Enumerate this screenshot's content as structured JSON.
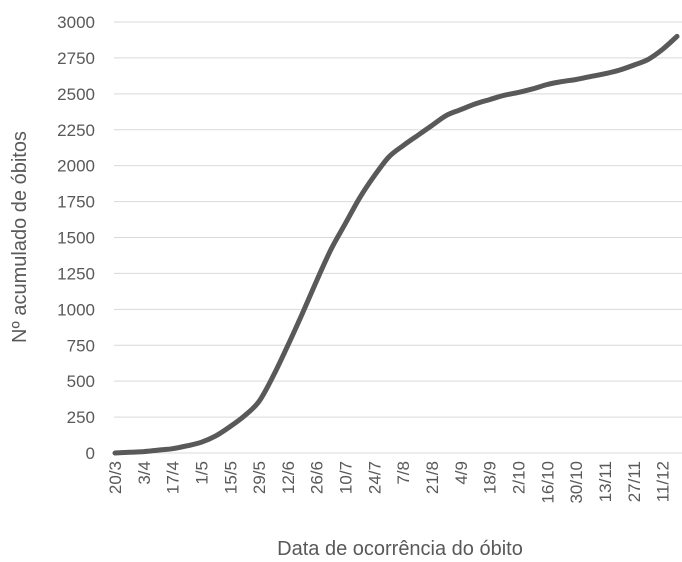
{
  "chart_data": {
    "type": "line",
    "title": "",
    "xlabel": "Data de ocorrência do óbito",
    "ylabel": "Nº acumulado de óbitos",
    "ylim": [
      0,
      3000
    ],
    "yticks": [
      0,
      250,
      500,
      750,
      1000,
      1250,
      1500,
      1750,
      2000,
      2250,
      2500,
      2750,
      3000
    ],
    "xtick_labels": [
      "20/3",
      "3/4",
      "17/4",
      "1/5",
      "15/5",
      "29/5",
      "12/6",
      "26/6",
      "10/7",
      "24/7",
      "7/8",
      "21/8",
      "4/9",
      "18/9",
      "2/10",
      "16/10",
      "30/10",
      "13/11",
      "27/11",
      "11/12"
    ],
    "grid": true,
    "legend": "none",
    "line_color": "#595959",
    "series": [
      {
        "x": [
          "20/3",
          "27/3",
          "3/4",
          "10/4",
          "17/4",
          "24/4",
          "1/5",
          "8/5",
          "15/5",
          "22/5",
          "29/5",
          "5/6",
          "12/6",
          "19/6",
          "26/6",
          "3/7",
          "10/7",
          "17/7",
          "24/7",
          "31/7",
          "7/8",
          "14/8",
          "21/8",
          "28/8",
          "4/9",
          "11/9",
          "18/9",
          "25/9",
          "2/10",
          "9/10",
          "16/10",
          "23/10",
          "30/10",
          "6/11",
          "13/11",
          "20/11",
          "27/11",
          "4/12",
          "11/12",
          "18/12"
        ],
        "values": [
          0,
          5,
          10,
          20,
          30,
          50,
          75,
          120,
          185,
          260,
          360,
          540,
          750,
          970,
          1200,
          1420,
          1600,
          1780,
          1930,
          2060,
          2140,
          2210,
          2280,
          2350,
          2390,
          2430,
          2460,
          2490,
          2510,
          2535,
          2565,
          2585,
          2600,
          2620,
          2640,
          2665,
          2700,
          2740,
          2810,
          2900
        ]
      }
    ]
  }
}
